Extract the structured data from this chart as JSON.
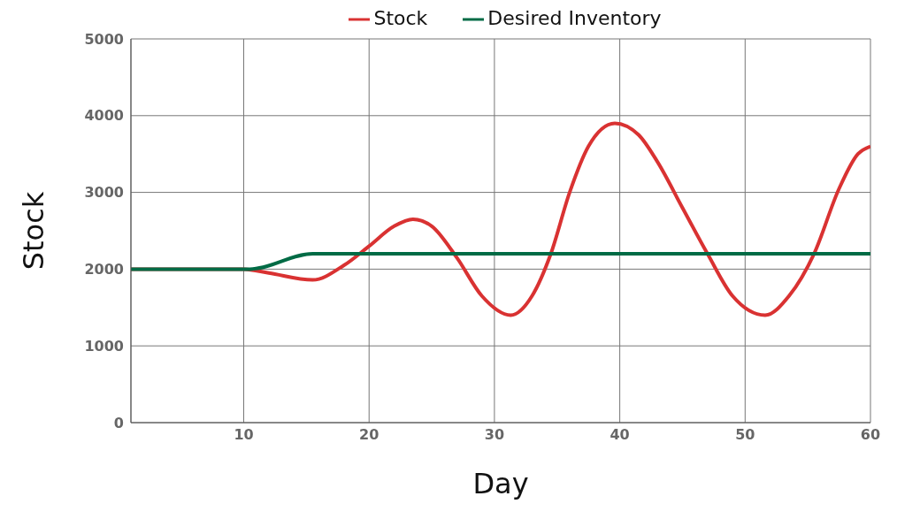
{
  "chart_data": {
    "type": "line",
    "xlabel": "Day",
    "ylabel": "Stock",
    "xlim": [
      1,
      60
    ],
    "xticks": [
      10,
      20,
      30,
      40,
      50,
      60
    ],
    "ylim": [
      0,
      5000
    ],
    "yticks": [
      0,
      1000,
      2000,
      3000,
      4000,
      5000
    ],
    "grid": true,
    "legend": "top",
    "marker": "none",
    "line_style": "solid",
    "series": [
      {
        "name": "Stock",
        "color": "#d93232",
        "x": [
          1,
          10,
          12,
          15.5,
          18,
          20,
          22,
          23.5,
          25,
          27,
          29,
          31.3,
          33,
          34.5,
          36,
          37.5,
          39.6,
          41.5,
          43,
          45,
          47,
          49,
          51.6,
          53.5,
          55.5,
          57.5,
          59,
          60
        ],
        "values": [
          2000,
          2000,
          1950,
          1860,
          2050,
          2300,
          2560,
          2650,
          2560,
          2150,
          1650,
          1400,
          1650,
          2200,
          3000,
          3600,
          3900,
          3750,
          3400,
          2800,
          2200,
          1650,
          1400,
          1650,
          2200,
          3050,
          3500,
          3600
        ]
      },
      {
        "name": "Desired Inventory",
        "color": "#006b45",
        "x": [
          1,
          10.5,
          15.5,
          60
        ],
        "values": [
          2000,
          2000,
          2200,
          2200
        ]
      }
    ]
  }
}
